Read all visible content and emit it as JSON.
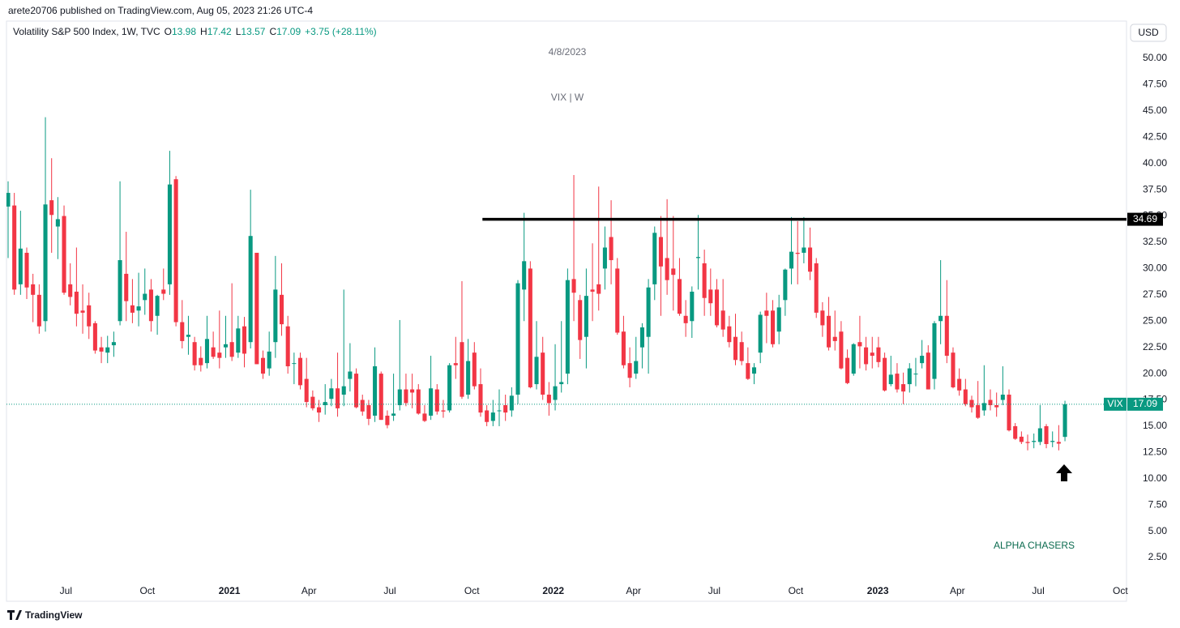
{
  "chart_data": {
    "type": "candlestick",
    "publisher_line": "arete20706 published on TradingView.com, Aug 05, 2023 21:26 UTC-4",
    "symbol_label": "Volatility S&P 500 Index, 1W, TVC",
    "ohlc_letters": [
      "O",
      "H",
      "L",
      "C"
    ],
    "change_label": "+3.75 (+28.11%)",
    "currency": "USD",
    "title": "4/8/2023",
    "subtitle": "VIX | W",
    "annotation": "ALPHA CHASERS",
    "brand": "TradingView",
    "last_price_name": "VIX",
    "up_color": "#089981",
    "down_color": "#f23645",
    "grid": false,
    "hline": {
      "value": 34.69,
      "x_from": 76.3,
      "color": "#000000"
    },
    "xlim": [
      -0.26,
      179.9
    ],
    "xticks": [
      {
        "value": 9.3,
        "label": "Jul"
      },
      {
        "value": 22.4,
        "label": "Oct"
      },
      {
        "value": 35.6,
        "label": "2021"
      },
      {
        "value": 48.4,
        "label": "Apr"
      },
      {
        "value": 61.4,
        "label": "Jul"
      },
      {
        "value": 74.6,
        "label": "Oct"
      },
      {
        "value": 87.7,
        "label": "2022"
      },
      {
        "value": 100.6,
        "label": "Apr"
      },
      {
        "value": 113.6,
        "label": "Jul"
      },
      {
        "value": 126.7,
        "label": "Oct"
      },
      {
        "value": 139.9,
        "label": "2023"
      },
      {
        "value": 152.7,
        "label": "Apr"
      },
      {
        "value": 165.7,
        "label": "Jul"
      },
      {
        "value": 178.9,
        "label": "Oct"
      }
    ],
    "ylim": [
      -1.66,
      53.55
    ],
    "yticks": [
      {
        "value": 2.5,
        "label": "2.50"
      },
      {
        "value": 5,
        "label": "5.00"
      },
      {
        "value": 7.5,
        "label": "7.50"
      },
      {
        "value": 10,
        "label": "10.00"
      },
      {
        "value": 12.5,
        "label": "12.50"
      },
      {
        "value": 15,
        "label": "15.00"
      },
      {
        "value": 17.5,
        "label": "17.50"
      },
      {
        "value": 20,
        "label": "20.00"
      },
      {
        "value": 22.5,
        "label": "22.50"
      },
      {
        "value": 25,
        "label": "25.00"
      },
      {
        "value": 27.5,
        "label": "27.50"
      },
      {
        "value": 30,
        "label": "30.00"
      },
      {
        "value": 32.5,
        "label": "32.50"
      },
      {
        "value": 35,
        "label": "35.00"
      },
      {
        "value": 37.5,
        "label": "37.50"
      },
      {
        "value": 40,
        "label": "40.00"
      },
      {
        "value": 42.5,
        "label": "42.50"
      },
      {
        "value": 45,
        "label": "45.00"
      },
      {
        "value": 47.5,
        "label": "47.50"
      },
      {
        "value": 50,
        "label": "50.00"
      }
    ],
    "values": [
      [
        35.9,
        38.3,
        31.0,
        37.2
      ],
      [
        36.0,
        37.2,
        27.5,
        28.0
      ],
      [
        28.5,
        35.5,
        27.5,
        31.9
      ],
      [
        31.5,
        32.0,
        27.1,
        28.2
      ],
      [
        28.5,
        29.5,
        24.9,
        27.5
      ],
      [
        27.5,
        28.5,
        23.8,
        24.5
      ],
      [
        25.0,
        44.4,
        24.0,
        36.1
      ],
      [
        36.5,
        40.5,
        31.5,
        35.1
      ],
      [
        34.0,
        36.8,
        30.9,
        34.7
      ],
      [
        35.0,
        36.0,
        27.5,
        27.7
      ],
      [
        28.5,
        30.5,
        26.5,
        27.3
      ],
      [
        27.8,
        32.0,
        24.5,
        25.7
      ],
      [
        26.0,
        28.5,
        23.8,
        25.8
      ],
      [
        26.5,
        27.7,
        23.3,
        24.5
      ],
      [
        24.8,
        25.0,
        21.9,
        22.2
      ],
      [
        22.5,
        23.5,
        21.0,
        22.1
      ],
      [
        22.0,
        23.6,
        21.0,
        22.5
      ],
      [
        22.7,
        24.0,
        21.6,
        23.0
      ],
      [
        25.0,
        38.3,
        24.6,
        30.8
      ],
      [
        29.5,
        33.5,
        25.0,
        26.9
      ],
      [
        26.5,
        29.0,
        24.8,
        25.8
      ],
      [
        26.0,
        29.6,
        24.5,
        26.4
      ],
      [
        27.0,
        30.0,
        25.6,
        27.6
      ],
      [
        28.0,
        29.0,
        24.0,
        25.0
      ],
      [
        25.5,
        27.5,
        23.7,
        27.4
      ],
      [
        28.0,
        30.0,
        27.0,
        27.6
      ],
      [
        28.5,
        41.2,
        27.5,
        38.0
      ],
      [
        38.5,
        38.8,
        24.5,
        24.9
      ],
      [
        24.9,
        27.0,
        22.4,
        23.1
      ],
      [
        23.5,
        25.5,
        21.8,
        23.7
      ],
      [
        23.0,
        23.5,
        20.3,
        20.8
      ],
      [
        21.5,
        22.6,
        20.2,
        20.8
      ],
      [
        21.0,
        25.5,
        20.5,
        23.3
      ],
      [
        22.5,
        24.0,
        21.4,
        21.6
      ],
      [
        22.0,
        26.0,
        20.5,
        21.5
      ],
      [
        22.5,
        25.5,
        21.5,
        22.8
      ],
      [
        23.0,
        28.6,
        21.2,
        21.6
      ],
      [
        22.0,
        25.5,
        21.5,
        24.3
      ],
      [
        24.5,
        25.4,
        20.6,
        21.9
      ],
      [
        23.0,
        37.5,
        22.4,
        33.1
      ],
      [
        31.5,
        31.5,
        20.9,
        20.9
      ],
      [
        21.5,
        22.2,
        19.5,
        20.0
      ],
      [
        20.5,
        24.0,
        19.8,
        22.1
      ],
      [
        23.0,
        31.2,
        21.5,
        28.0
      ],
      [
        27.5,
        30.5,
        23.6,
        24.7
      ],
      [
        24.5,
        25.5,
        20.0,
        20.7
      ],
      [
        21.0,
        22.0,
        19.0,
        21.0
      ],
      [
        21.5,
        22.0,
        18.5,
        18.9
      ],
      [
        19.5,
        21.5,
        16.8,
        17.3
      ],
      [
        17.8,
        18.4,
        16.5,
        16.7
      ],
      [
        16.8,
        17.5,
        15.4,
        16.3
      ],
      [
        17.0,
        19.0,
        16.1,
        17.3
      ],
      [
        17.6,
        19.5,
        16.9,
        18.6
      ],
      [
        18.6,
        22.0,
        15.9,
        16.7
      ],
      [
        18.0,
        28.0,
        16.9,
        18.8
      ],
      [
        19.5,
        22.9,
        18.3,
        20.2
      ],
      [
        20.0,
        20.5,
        16.7,
        16.8
      ],
      [
        17.5,
        18.0,
        16.0,
        16.4
      ],
      [
        17.0,
        17.5,
        15.1,
        15.7
      ],
      [
        16.0,
        22.5,
        15.4,
        20.7
      ],
      [
        20.0,
        20.2,
        15.6,
        15.6
      ],
      [
        16.0,
        16.5,
        14.8,
        15.1
      ],
      [
        16.0,
        20.0,
        15.5,
        16.2
      ],
      [
        17.0,
        25.1,
        16.5,
        18.5
      ],
      [
        18.5,
        20.0,
        16.9,
        17.2
      ],
      [
        18.5,
        20.0,
        16.7,
        18.2
      ],
      [
        18.5,
        19.0,
        16.1,
        16.2
      ],
      [
        16.2,
        17.0,
        15.4,
        15.5
      ],
      [
        16.0,
        21.7,
        15.6,
        18.6
      ],
      [
        18.5,
        19.0,
        16.1,
        16.4
      ],
      [
        16.5,
        17.5,
        15.8,
        16.4
      ],
      [
        16.5,
        21.0,
        16.3,
        20.8
      ],
      [
        21.0,
        23.5,
        19.5,
        20.8
      ],
      [
        23.0,
        28.8,
        17.6,
        17.8
      ],
      [
        18.0,
        23.3,
        17.6,
        21.2
      ],
      [
        22.0,
        23.0,
        18.5,
        18.8
      ],
      [
        19.0,
        20.5,
        15.9,
        16.3
      ],
      [
        16.5,
        17.0,
        15.0,
        15.4
      ],
      [
        15.5,
        17.5,
        15.0,
        16.3
      ],
      [
        16.5,
        18.5,
        15.0,
        16.5
      ],
      [
        17.0,
        18.0,
        15.5,
        16.3
      ],
      [
        16.5,
        18.7,
        15.9,
        17.9
      ],
      [
        18.0,
        28.9,
        17.1,
        28.6
      ],
      [
        28.0,
        35.3,
        25.0,
        30.7
      ],
      [
        30.0,
        30.7,
        18.6,
        18.7
      ],
      [
        19.0,
        25.0,
        18.5,
        21.6
      ],
      [
        22.0,
        23.5,
        17.5,
        18.0
      ],
      [
        18.0,
        19.2,
        16.0,
        17.2
      ],
      [
        17.5,
        22.8,
        16.5,
        18.8
      ],
      [
        19.0,
        25.0,
        18.2,
        19.2
      ],
      [
        20.0,
        30.0,
        19.0,
        28.9
      ],
      [
        29.0,
        38.9,
        25.0,
        27.7
      ],
      [
        27.0,
        27.5,
        21.4,
        23.2
      ],
      [
        23.5,
        30.0,
        20.5,
        27.4
      ],
      [
        28.0,
        32.4,
        25.0,
        27.8
      ],
      [
        28.5,
        37.8,
        26.0,
        27.6
      ],
      [
        30.0,
        34.0,
        28.0,
        32.0
      ],
      [
        33.0,
        36.5,
        28.5,
        30.8
      ],
      [
        30.0,
        31.0,
        23.7,
        23.9
      ],
      [
        24.0,
        25.5,
        20.5,
        20.8
      ],
      [
        21.0,
        22.5,
        18.7,
        19.6
      ],
      [
        20.0,
        23.5,
        19.5,
        21.2
      ],
      [
        22.5,
        24.8,
        20.5,
        24.4
      ],
      [
        23.5,
        29.0,
        20.0,
        28.2
      ],
      [
        28.5,
        34.0,
        27.0,
        33.4
      ],
      [
        33.0,
        35.0,
        25.5,
        30.2
      ],
      [
        31.0,
        36.6,
        27.5,
        28.9
      ],
      [
        30.0,
        35.0,
        26.0,
        29.4
      ],
      [
        29.0,
        31.0,
        25.5,
        25.7
      ],
      [
        25.5,
        27.0,
        23.5,
        24.8
      ],
      [
        25.0,
        28.3,
        23.4,
        27.8
      ],
      [
        31.0,
        35.1,
        28.0,
        31.1
      ],
      [
        30.5,
        31.8,
        25.5,
        27.2
      ],
      [
        28.0,
        30.0,
        25.5,
        26.7
      ],
      [
        28.0,
        29.0,
        24.4,
        24.6
      ],
      [
        26.0,
        29.0,
        23.5,
        24.2
      ],
      [
        24.5,
        25.5,
        22.5,
        23.0
      ],
      [
        23.5,
        25.7,
        20.8,
        21.3
      ],
      [
        23.0,
        24.0,
        20.8,
        21.2
      ],
      [
        21.0,
        22.5,
        19.4,
        19.5
      ],
      [
        20.0,
        21.0,
        19.0,
        20.6
      ],
      [
        22.0,
        25.9,
        21.0,
        25.6
      ],
      [
        26.0,
        27.7,
        22.9,
        25.5
      ],
      [
        26.0,
        27.0,
        22.5,
        22.8
      ],
      [
        24.0,
        27.5,
        22.8,
        26.3
      ],
      [
        27.0,
        30.0,
        25.5,
        29.9
      ],
      [
        30.0,
        34.9,
        28.5,
        31.6
      ],
      [
        31.5,
        34.5,
        28.5,
        31.4
      ],
      [
        31.5,
        34.9,
        30.5,
        32.0
      ],
      [
        32.0,
        33.9,
        28.9,
        29.7
      ],
      [
        30.5,
        31.0,
        25.3,
        25.8
      ],
      [
        26.0,
        26.8,
        23.5,
        24.6
      ],
      [
        25.5,
        27.3,
        22.2,
        22.5
      ],
      [
        23.5,
        26.0,
        22.2,
        23.1
      ],
      [
        24.0,
        25.0,
        20.4,
        20.5
      ],
      [
        21.5,
        22.3,
        19.0,
        19.1
      ],
      [
        20.0,
        22.9,
        19.8,
        22.8
      ],
      [
        23.0,
        25.5,
        20.5,
        22.6
      ],
      [
        22.5,
        23.5,
        20.3,
        20.9
      ],
      [
        22.0,
        23.5,
        20.5,
        21.7
      ],
      [
        22.5,
        23.5,
        20.6,
        21.1
      ],
      [
        21.5,
        22.0,
        18.3,
        18.4
      ],
      [
        19.0,
        21.7,
        18.8,
        19.9
      ],
      [
        20.0,
        21.0,
        18.2,
        18.5
      ],
      [
        19.0,
        20.1,
        17.1,
        18.3
      ],
      [
        19.0,
        21.0,
        18.2,
        20.5
      ],
      [
        20.0,
        21.5,
        18.8,
        20.0
      ],
      [
        21.0,
        23.2,
        20.5,
        21.7
      ],
      [
        22.0,
        22.7,
        18.5,
        18.5
      ],
      [
        19.5,
        25.0,
        18.5,
        24.8
      ],
      [
        25.0,
        30.8,
        22.8,
        25.5
      ],
      [
        25.5,
        28.9,
        21.0,
        21.7
      ],
      [
        22.0,
        22.5,
        18.6,
        18.7
      ],
      [
        19.5,
        20.5,
        17.9,
        18.4
      ],
      [
        18.5,
        19.5,
        16.9,
        17.1
      ],
      [
        17.5,
        17.9,
        16.3,
        16.8
      ],
      [
        17.0,
        19.3,
        15.7,
        15.8
      ],
      [
        16.5,
        20.8,
        16.0,
        17.2
      ],
      [
        17.5,
        18.5,
        16.5,
        17.0
      ],
      [
        17.0,
        18.2,
        15.9,
        16.8
      ],
      [
        17.5,
        20.7,
        17.0,
        18.0
      ],
      [
        18.0,
        18.5,
        14.5,
        14.6
      ],
      [
        15.0,
        15.3,
        13.7,
        13.8
      ],
      [
        14.0,
        14.5,
        13.3,
        13.5
      ],
      [
        13.5,
        14.2,
        12.7,
        13.4
      ],
      [
        13.5,
        14.3,
        12.9,
        13.6
      ],
      [
        13.5,
        17.0,
        13.2,
        14.8
      ],
      [
        15.0,
        15.2,
        12.9,
        13.3
      ],
      [
        13.5,
        14.5,
        13.0,
        13.6
      ],
      [
        13.5,
        15.1,
        12.7,
        13.34
      ],
      [
        13.98,
        17.42,
        13.57,
        17.09
      ]
    ]
  }
}
